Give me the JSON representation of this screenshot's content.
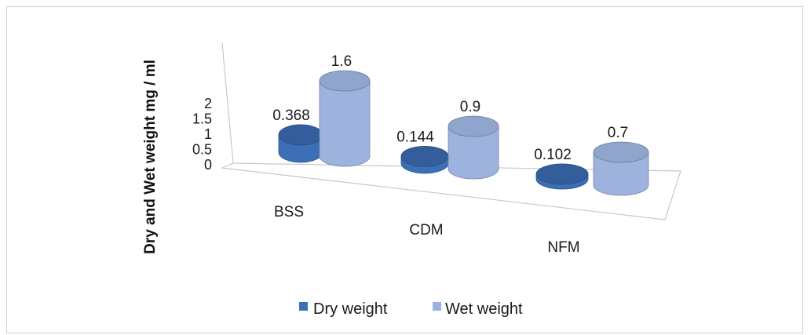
{
  "chart_data": {
    "type": "bar",
    "style": "3d-cylinder",
    "title": "",
    "ylabel": "Dry and Wet weight mg / ml",
    "xlabel": "",
    "categories": [
      "BSS",
      "CDM",
      "NFM"
    ],
    "series": [
      {
        "name": "Dry weight",
        "values": [
          0.368,
          0.144,
          0.102
        ],
        "labels": [
          "0.368",
          "0.144",
          "0.102"
        ],
        "color": "#3c6fb6"
      },
      {
        "name": "Wet weight",
        "values": [
          1.6,
          0.9,
          0.7
        ],
        "labels": [
          "1.6",
          "0.9",
          "0.7"
        ],
        "color": "#9db3de"
      }
    ],
    "ylim": [
      0,
      2
    ],
    "yticks": [
      "0",
      "0.5",
      "1",
      "1.5",
      "2"
    ],
    "legend_position": "bottom",
    "grid": false
  }
}
